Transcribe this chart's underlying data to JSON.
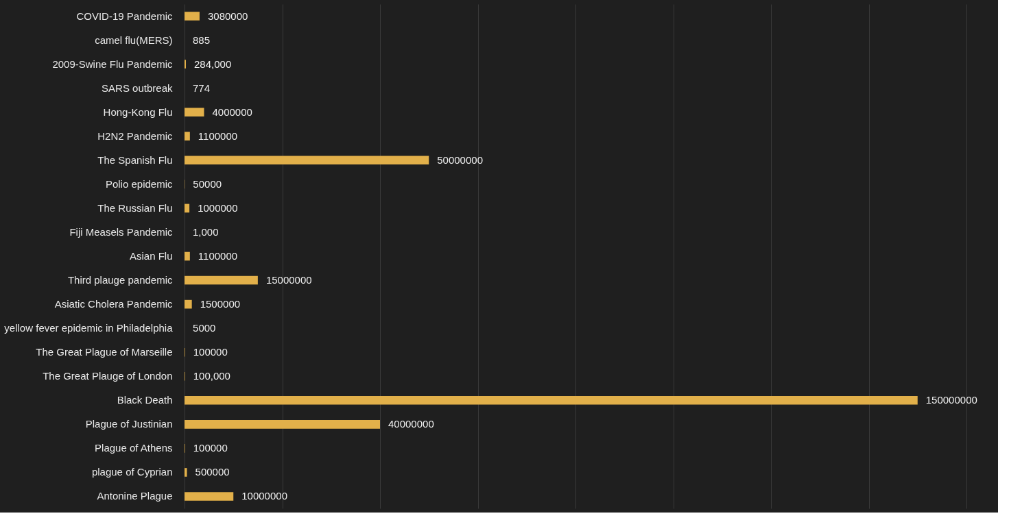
{
  "chart_data": {
    "type": "bar",
    "orientation": "horizontal",
    "categories": [
      "COVID-19 Pandemic",
      "camel flu(MERS)",
      "2009-Swine Flu Pandemic",
      "SARS outbreak",
      "Hong-Kong Flu",
      "H2N2 Pandemic",
      "The Spanish Flu",
      "Polio epidemic",
      "The Russian Flu",
      "Fiji  Measels Pandemic",
      "Asian Flu",
      "Third plauge pandemic",
      "Asiatic Cholera Pandemic",
      "yellow fever epidemic in Philadelphia",
      "The Great Plague of Marseille",
      "The Great Plauge of London",
      "Black Death",
      "Plague of Justinian",
      "Plague of Athens",
      "plague of Cyprian",
      "Antonine Plague"
    ],
    "values": [
      3080000,
      885,
      284000,
      774,
      4000000,
      1100000,
      50000000,
      50000,
      1000000,
      1000,
      1100000,
      15000000,
      1500000,
      5000,
      100000,
      100000,
      150000000,
      40000000,
      100000,
      500000,
      10000000
    ],
    "value_labels": [
      "3080000",
      "885",
      "284,000",
      "774",
      "4000000",
      "1100000",
      "50000000",
      "50000",
      "1000000",
      "1,000",
      "1100000",
      "15000000",
      "1500000",
      "5000",
      "100000",
      "100,000",
      "150000000",
      "40000000",
      "100000",
      "500000",
      "10000000"
    ],
    "color": "#e2b04a",
    "xlim": [
      0,
      160000000
    ],
    "xticks": [
      {
        "value": 0,
        "label": null
      },
      {
        "value": 20000000,
        "label": null
      },
      {
        "value": 40000000,
        "label": null
      },
      {
        "value": 60000000,
        "label": null
      },
      {
        "value": 80000000,
        "label": null
      },
      {
        "value": 100000000,
        "label": null
      },
      {
        "value": 120000000,
        "label": null
      },
      {
        "value": 140000000,
        "label": null
      },
      {
        "value": 160000000,
        "label": null
      }
    ],
    "grid": "x",
    "tick_labels": "y"
  }
}
